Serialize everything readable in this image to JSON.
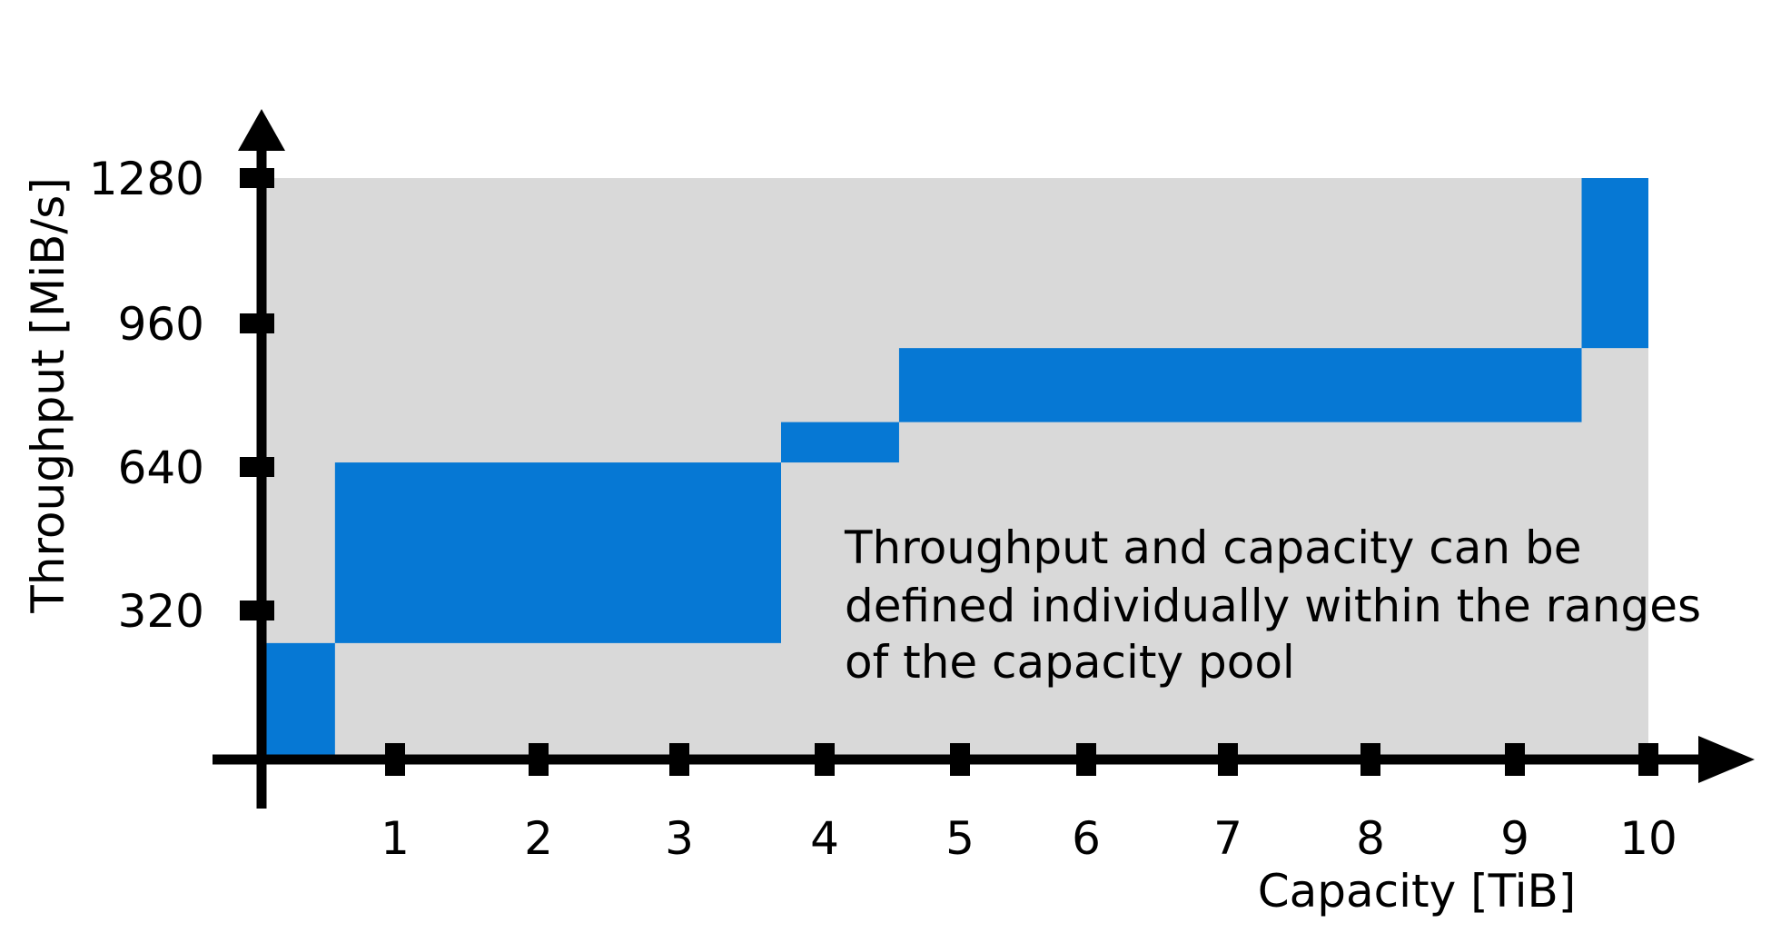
{
  "chart_data": {
    "type": "area",
    "xlabel": "Capacity [TiB]",
    "ylabel": "Throughput [MiB/s]",
    "x_ticks": [
      1,
      2,
      3,
      4,
      5,
      6,
      7,
      8,
      9,
      10
    ],
    "y_ticks": [
      320,
      640,
      960,
      1280
    ],
    "x_tick_labels": [
      "1",
      "2",
      "3",
      "4",
      "5",
      "6",
      "7",
      "8",
      "9",
      "10"
    ],
    "y_tick_labels": [
      "320",
      "640",
      "960",
      "1280"
    ],
    "xlim": [
      0,
      10.04
    ],
    "ylim": [
      0,
      1290
    ],
    "background_region": {
      "x": [
        0,
        10
      ],
      "y": [
        0,
        1280
      ]
    },
    "ranges": [
      {
        "x": [
          0,
          0.55
        ],
        "y": [
          0,
          250
        ]
      },
      {
        "x": [
          0.55,
          3.7
        ],
        "y": [
          250,
          650
        ]
      },
      {
        "x": [
          3.7,
          4.55
        ],
        "y": [
          650,
          740
        ]
      },
      {
        "x": [
          4.55,
          9.5
        ],
        "y": [
          740,
          905
        ]
      },
      {
        "x": [
          9.5,
          10
        ],
        "y": [
          905,
          1280
        ]
      }
    ],
    "annotation": [
      "Throughput and capacity can be",
      "defined individually within the ranges",
      "of the capacity pool"
    ],
    "colors": {
      "range": "#0678d4",
      "background": "#d9d9d9",
      "axis": "#000000"
    }
  }
}
